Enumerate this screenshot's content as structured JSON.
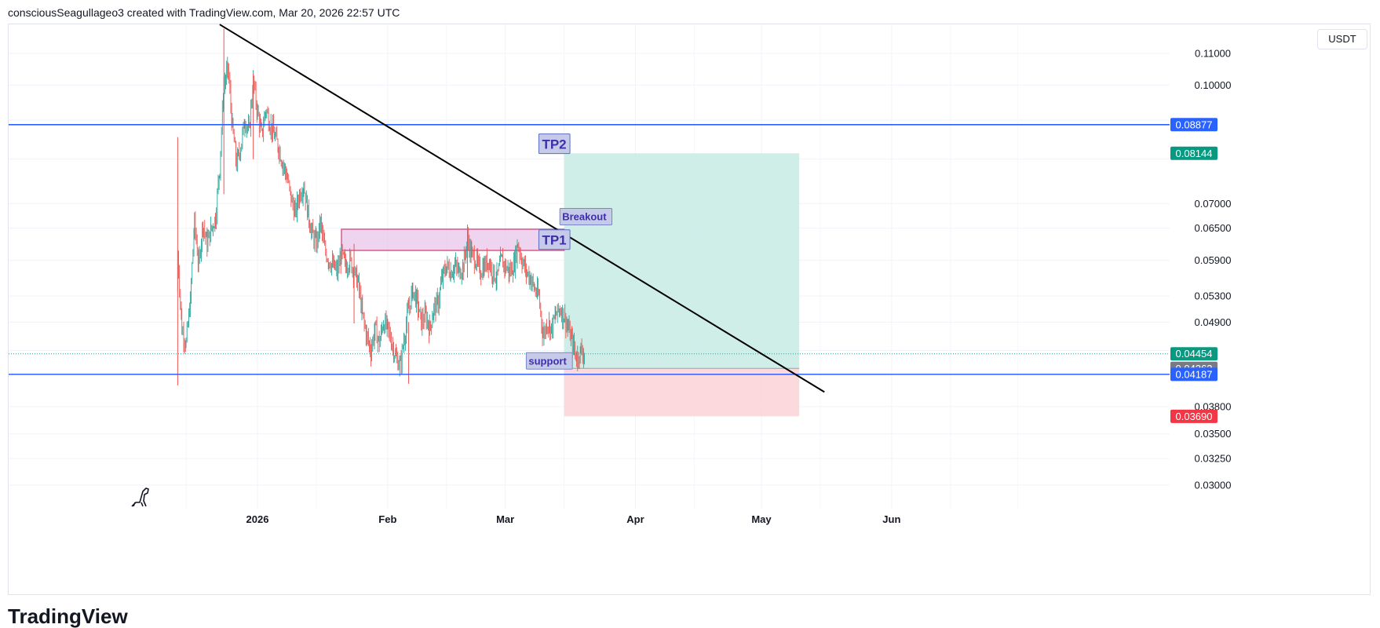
{
  "header": {
    "text": "consciousSeagullageo3 created with TradingView.com, Mar 20, 2026 22:57 UTC"
  },
  "currency": "USDT",
  "brand": "TradingView",
  "colors": {
    "up": "#26a69a",
    "down": "#ef5350",
    "level_line": "#2962ff",
    "trend_line": "#000000",
    "profit_zone": "#c8ebe4",
    "loss_zone": "#fbd5d8",
    "resistance_box": "#e8c3e8",
    "resistance_border": "#c2185b",
    "label_bg": "#c5cae9",
    "label_text": "#3f2fa8"
  },
  "chart_data": {
    "type": "candlestick",
    "title": "",
    "xlabel": "",
    "ylabel": "",
    "x_ticks": [
      "2026",
      "Feb",
      "Mar",
      "Apr",
      "May",
      "Jun"
    ],
    "y_ticks": [
      "0.11000",
      "0.10000",
      "0.07000",
      "0.06500",
      "0.05900",
      "0.05300",
      "0.04900",
      "0.03800",
      "0.03500",
      "0.03250",
      "0.03000"
    ],
    "ylim": [
      0.0285,
      0.122
    ],
    "y_scale": "log",
    "series": [
      {
        "kind": "close_path",
        "points": [
          [
            "Dec 13 2025",
            0.06
          ],
          [
            "Dec 14 2025",
            0.048
          ],
          [
            "Dec 15 2025",
            0.046
          ],
          [
            "Dec 16 2025",
            0.052
          ],
          [
            "Dec 17 2025",
            0.066
          ],
          [
            "Dec 18 2025",
            0.058
          ],
          [
            "Dec 19 2025",
            0.066
          ],
          [
            "Dec 20 2025",
            0.062
          ],
          [
            "Dec 21 2025",
            0.065
          ],
          [
            "Dec 22 2025",
            0.067
          ],
          [
            "Dec 23 2025",
            0.078
          ],
          [
            "Dec 24 2025",
            0.1
          ],
          [
            "Dec 25 2025",
            0.105
          ],
          [
            "Dec 26 2025",
            0.088
          ],
          [
            "Dec 27 2025",
            0.079
          ],
          [
            "Dec 28 2025",
            0.083
          ],
          [
            "Dec 29 2025",
            0.09
          ],
          [
            "Dec 30 2025",
            0.087
          ],
          [
            "Dec 31 2025",
            0.101
          ],
          [
            "Jan 1 2026",
            0.092
          ],
          [
            "Jan 2 2026",
            0.086
          ],
          [
            "Jan 3 2026",
            0.093
          ],
          [
            "Jan 4 2026",
            0.089
          ],
          [
            "Jan 5 2026",
            0.086
          ],
          [
            "Jan 6 2026",
            0.083
          ],
          [
            "Jan 7 2026",
            0.079
          ],
          [
            "Jan 8 2026",
            0.076
          ],
          [
            "Jan 9 2026",
            0.071
          ],
          [
            "Jan 10 2026",
            0.068
          ],
          [
            "Jan 11 2026",
            0.072
          ],
          [
            "Jan 12 2026",
            0.074
          ],
          [
            "Jan 13 2026",
            0.068
          ],
          [
            "Jan 14 2026",
            0.064
          ],
          [
            "Jan 15 2026",
            0.062
          ],
          [
            "Jan 16 2026",
            0.066
          ],
          [
            "Jan 17 2026",
            0.061
          ],
          [
            "Jan 18 2026",
            0.059
          ],
          [
            "Jan 19 2026",
            0.058
          ],
          [
            "Jan 20 2026",
            0.057
          ],
          [
            "Jan 21 2026",
            0.06
          ],
          [
            "Jan 22 2026",
            0.058
          ],
          [
            "Jan 23 2026",
            0.059
          ],
          [
            "Jan 24 2026",
            0.057
          ],
          [
            "Jan 25 2026",
            0.055
          ],
          [
            "Jan 26 2026",
            0.05
          ],
          [
            "Jan 27 2026",
            0.047
          ],
          [
            "Jan 28 2026",
            0.045
          ],
          [
            "Jan 29 2026",
            0.048
          ],
          [
            "Jan 30 2026",
            0.046
          ],
          [
            "Jan 31 2026",
            0.049
          ],
          [
            "Feb 1 2026",
            0.048
          ],
          [
            "Feb 2 2026",
            0.046
          ],
          [
            "Feb 3 2026",
            0.044
          ],
          [
            "Feb 4 2026",
            0.043
          ],
          [
            "Feb 5 2026",
            0.047
          ],
          [
            "Feb 6 2026",
            0.051
          ],
          [
            "Feb 7 2026",
            0.054
          ],
          [
            "Feb 8 2026",
            0.052
          ],
          [
            "Feb 9 2026",
            0.049
          ],
          [
            "Feb 10 2026",
            0.05
          ],
          [
            "Feb 11 2026",
            0.048
          ],
          [
            "Feb 12 2026",
            0.051
          ],
          [
            "Feb 13 2026",
            0.052
          ],
          [
            "Feb 14 2026",
            0.056
          ],
          [
            "Feb 15 2026",
            0.058
          ],
          [
            "Feb 16 2026",
            0.057
          ],
          [
            "Feb 17 2026",
            0.058
          ],
          [
            "Feb 18 2026",
            0.057
          ],
          [
            "Feb 19 2026",
            0.058
          ],
          [
            "Feb 20 2026",
            0.063
          ],
          [
            "Feb 21 2026",
            0.06
          ],
          [
            "Feb 22 2026",
            0.059
          ],
          [
            "Feb 23 2026",
            0.057
          ],
          [
            "Feb 24 2026",
            0.058
          ],
          [
            "Feb 25 2026",
            0.059
          ],
          [
            "Feb 26 2026",
            0.057
          ],
          [
            "Feb 27 2026",
            0.056
          ],
          [
            "Feb 28 2026",
            0.059
          ],
          [
            "Mar 1 2026",
            0.058
          ],
          [
            "Mar 2 2026",
            0.057
          ],
          [
            "Mar 3 2026",
            0.058
          ],
          [
            "Mar 4 2026",
            0.062
          ],
          [
            "Mar 5 2026",
            0.059
          ],
          [
            "Mar 6 2026",
            0.057
          ],
          [
            "Mar 7 2026",
            0.056
          ],
          [
            "Mar 8 2026",
            0.054
          ],
          [
            "Mar 9 2026",
            0.053
          ],
          [
            "Mar 10 2026",
            0.047
          ],
          [
            "Mar 11 2026",
            0.049
          ],
          [
            "Mar 12 2026",
            0.048
          ],
          [
            "Mar 13 2026",
            0.05
          ],
          [
            "Mar 14 2026",
            0.051
          ],
          [
            "Mar 15 2026",
            0.05
          ],
          [
            "Mar 16 2026",
            0.048
          ],
          [
            "Mar 17 2026",
            0.046
          ],
          [
            "Mar 18 2026",
            0.044
          ],
          [
            "Mar 19 2026",
            0.045
          ],
          [
            "Mar 20 2026",
            0.04454
          ]
        ]
      }
    ],
    "horizontal_levels": [
      {
        "value": 0.08877,
        "label": "0.08877"
      },
      {
        "value": 0.04187,
        "label": "0.04187"
      }
    ],
    "price_tags": [
      {
        "value": 0.08877,
        "label": "0.08877",
        "color": "#2962ff"
      },
      {
        "value": 0.08144,
        "label": "0.08144",
        "color": "#089981"
      },
      {
        "value": 0.04454,
        "label": "0.04454",
        "color": "#089981"
      },
      {
        "value": 0.04263,
        "label": "0.04263",
        "color": "#787b86"
      },
      {
        "value": 0.04187,
        "label": "0.04187",
        "color": "#2962ff"
      },
      {
        "value": 0.0369,
        "label": "0.03690",
        "color": "#f23645"
      }
    ],
    "trend_line": {
      "from": [
        "Dec 23 2025",
        0.12
      ],
      "to": [
        "May 16 2026",
        0.0397
      ]
    },
    "position": {
      "start": "Mar 15 2026",
      "end": "May 10 2026",
      "entry": 0.04263,
      "target": 0.08144,
      "stop": 0.0369
    },
    "resistance_zone": {
      "start": "Jan 21 2026",
      "end": "Mar 15 2026",
      "top": 0.0648,
      "bottom": 0.0608
    },
    "annotations": [
      {
        "text": "TP2",
        "date": "Mar 9 2026",
        "value": 0.0838
      },
      {
        "text": "Breakout",
        "date": "Mar 14 2026",
        "value": 0.0673
      },
      {
        "text": "TP1",
        "date": "Mar 9 2026",
        "value": 0.0628
      },
      {
        "text": "support",
        "date": "Mar 6 2026",
        "value": 0.0436
      }
    ]
  }
}
